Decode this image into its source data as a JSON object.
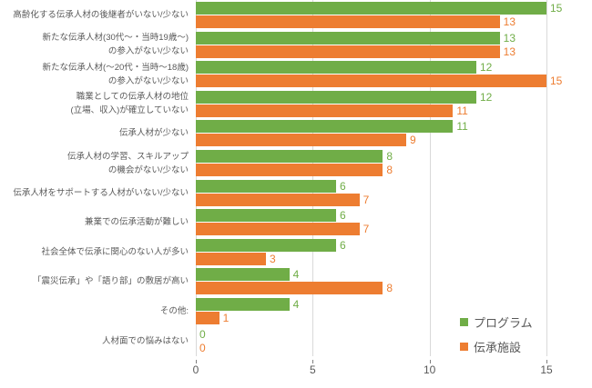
{
  "chart_data": {
    "type": "bar",
    "orientation": "horizontal",
    "title": "",
    "xlabel": "",
    "ylabel": "",
    "categories": [
      [
        "高齢化する伝承人材の後継者がいない/少ない"
      ],
      [
        "新たな伝承人材(30代〜・当時19歳〜)",
        "の参入がない/少ない"
      ],
      [
        "新たな伝承人材(〜20代・当時〜18歳)",
        "の参入がない/少ない"
      ],
      [
        "職業としての伝承人材の地位",
        "(立場、収入)が確立していない"
      ],
      [
        "伝承人材が少ない"
      ],
      [
        "伝承人材の学習、スキルアップ",
        "の機会がない/少ない"
      ],
      [
        "伝承人材をサポートする人材がいない/少ない"
      ],
      [
        "兼業での伝承活動が難しい"
      ],
      [
        "社会全体で伝承に関心のない人が多い"
      ],
      [
        "「震災伝承」や「語り部」の敷居が高い"
      ],
      [
        "その他:"
      ],
      [
        "人材面での悩みはない"
      ]
    ],
    "series": [
      {
        "name": "プログラム",
        "color": "#70AD47",
        "values": [
          15,
          13,
          12,
          12,
          11,
          8,
          6,
          6,
          6,
          4,
          4,
          0
        ]
      },
      {
        "name": "伝承施設",
        "color": "#ED7D31",
        "values": [
          13,
          13,
          15,
          11,
          9,
          8,
          7,
          7,
          3,
          8,
          1,
          0
        ]
      }
    ],
    "x_ticks": [
      0,
      5,
      10,
      15
    ],
    "xlim": [
      0,
      15
    ],
    "grid": "vertical",
    "data_labels": true,
    "legend_position": "bottom-right"
  },
  "colors": {
    "gridline": "#D9D9D9",
    "tick_mark": "#7F7F7F",
    "text": "#595959",
    "background": "#FFFFFF"
  }
}
